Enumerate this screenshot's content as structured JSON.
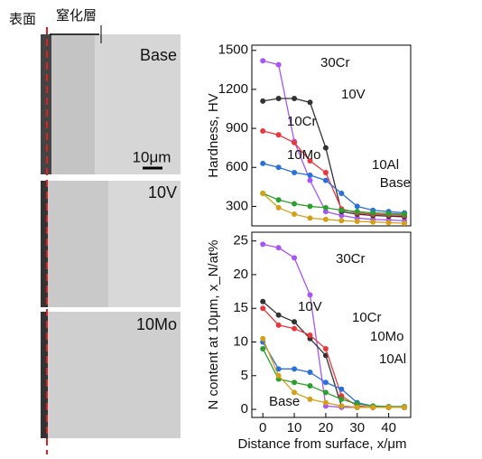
{
  "micrographs": {
    "surface": "表面",
    "nitrided_layer": "窒化層",
    "labels": [
      "Base",
      "10V",
      "10Mo"
    ],
    "scale_bar": "10μm"
  },
  "chart_data": [
    {
      "type": "line",
      "y_label": "Hardness, HV",
      "x": [
        0,
        5,
        10,
        15,
        20,
        25,
        30,
        35,
        40,
        45
      ],
      "xlim": [
        -3.5,
        47
      ],
      "ylim": [
        150,
        1540
      ],
      "yticks": [
        300,
        600,
        900,
        1200,
        1500
      ],
      "series": [
        {
          "name": "30Cr",
          "color": "#a855f7",
          "values": [
            1420,
            1390,
            800,
            500,
            260,
            230,
            210,
            200,
            195,
            190
          ]
        },
        {
          "name": "10V",
          "color": "#333333",
          "values": [
            1110,
            1130,
            1130,
            1100,
            750,
            260,
            240,
            230,
            225,
            220
          ]
        },
        {
          "name": "10Cr",
          "color": "#e8383d",
          "values": [
            880,
            850,
            790,
            650,
            560,
            280,
            250,
            240,
            235,
            230
          ]
        },
        {
          "name": "10Mo",
          "color": "#2a6fdb",
          "values": [
            630,
            600,
            560,
            540,
            500,
            400,
            300,
            270,
            260,
            250
          ]
        },
        {
          "name": "10Al",
          "color": "#2ca02c",
          "values": [
            400,
            350,
            320,
            300,
            290,
            270,
            260,
            250,
            245,
            240
          ]
        },
        {
          "name": "Base",
          "color": "#d4a017",
          "values": [
            400,
            290,
            240,
            210,
            200,
            190,
            185,
            180,
            175,
            170
          ]
        }
      ]
    },
    {
      "type": "line",
      "y_label": "N content at 10μm, x_N/at%",
      "x_label": "Distance from surface, x/μm",
      "x": [
        0,
        5,
        10,
        15,
        20,
        25,
        30,
        35,
        40,
        45
      ],
      "xlim": [
        -3.5,
        47
      ],
      "xticks": [
        0,
        10,
        20,
        30,
        40
      ],
      "ylim": [
        -1.2,
        26.3
      ],
      "yticks": [
        0,
        5,
        10,
        15,
        20,
        25
      ],
      "series": [
        {
          "name": "30Cr",
          "color": "#a855f7",
          "values": [
            24.5,
            24,
            22.5,
            17,
            0.5,
            0.3,
            0.3,
            0.3,
            0.3,
            0.3
          ]
        },
        {
          "name": "10V",
          "color": "#333333",
          "values": [
            16,
            14,
            13,
            10.5,
            8,
            0.5,
            0.3,
            0.3,
            0.3,
            0.3
          ]
        },
        {
          "name": "10Cr",
          "color": "#e8383d",
          "values": [
            15,
            12.5,
            12,
            11,
            9,
            2,
            0.5,
            0.3,
            0.3,
            0.3
          ]
        },
        {
          "name": "10Mo",
          "color": "#2a6fdb",
          "values": [
            10,
            6,
            6,
            5.5,
            4,
            3,
            1,
            0.5,
            0.4,
            0.4
          ]
        },
        {
          "name": "10Al",
          "color": "#2ca02c",
          "values": [
            9,
            4.5,
            4,
            3.5,
            2.5,
            1.5,
            0.8,
            0.5,
            0.4,
            0.4
          ]
        },
        {
          "name": "Base",
          "color": "#d4a017",
          "values": [
            10.5,
            5,
            2.5,
            1.5,
            1,
            0.5,
            0.3,
            0.3,
            0.3,
            0.3
          ]
        }
      ]
    }
  ]
}
